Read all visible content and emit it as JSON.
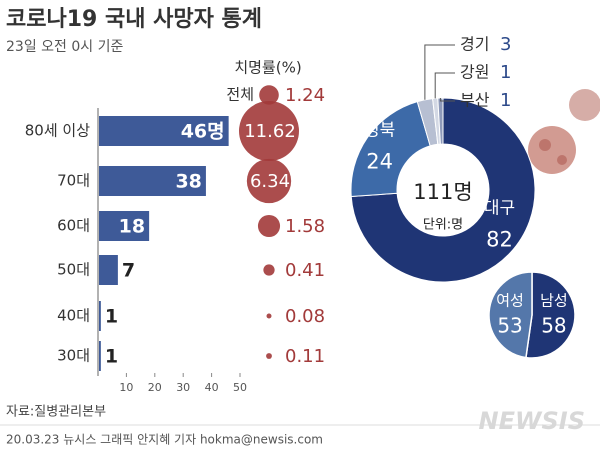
{
  "title": "코로나19 국내 사망자 통계",
  "subtitle": "23일 오전 0시 기준",
  "source": "자료:질병관리본부",
  "credit": "20.03.23 뉴시스 그래픽 안지혜 기자 hokma@newsis.com",
  "logo": "NEWSIS",
  "chart_data": [
    {
      "type": "bar",
      "orientation": "horizontal",
      "categories": [
        "80세 이상",
        "70대",
        "60대",
        "50대",
        "40대",
        "30대"
      ],
      "values": [
        46,
        38,
        18,
        7,
        1,
        1
      ],
      "value_labels": [
        "46명",
        "38",
        "18",
        "7",
        "1",
        "1"
      ],
      "color": "#3e5a98",
      "xlim": [
        0,
        50
      ],
      "xticks": [
        10,
        20,
        30,
        40,
        50
      ]
    },
    {
      "type": "bubble",
      "title": "치명률(%)",
      "overall": {
        "label": "전체",
        "value": 1.24
      },
      "values": [
        11.62,
        6.34,
        1.58,
        0.41,
        0.08,
        0.11
      ],
      "color": "#a23a3a"
    },
    {
      "type": "donut",
      "categories": [
        "대구",
        "경북",
        "경기",
        "강원",
        "부산"
      ],
      "values": [
        82,
        24,
        3,
        1,
        1
      ],
      "colors": [
        "#1f3575",
        "#3d6aa8",
        "#b7bfd2",
        "#d3d8e4",
        "#8e9aba"
      ],
      "total": {
        "value": 111,
        "label": "111명"
      },
      "unit": "단위:명"
    },
    {
      "type": "pie",
      "categories": [
        "여성",
        "남성"
      ],
      "values": [
        53,
        58
      ],
      "colors": [
        "#5477aa",
        "#1f3575"
      ]
    }
  ]
}
